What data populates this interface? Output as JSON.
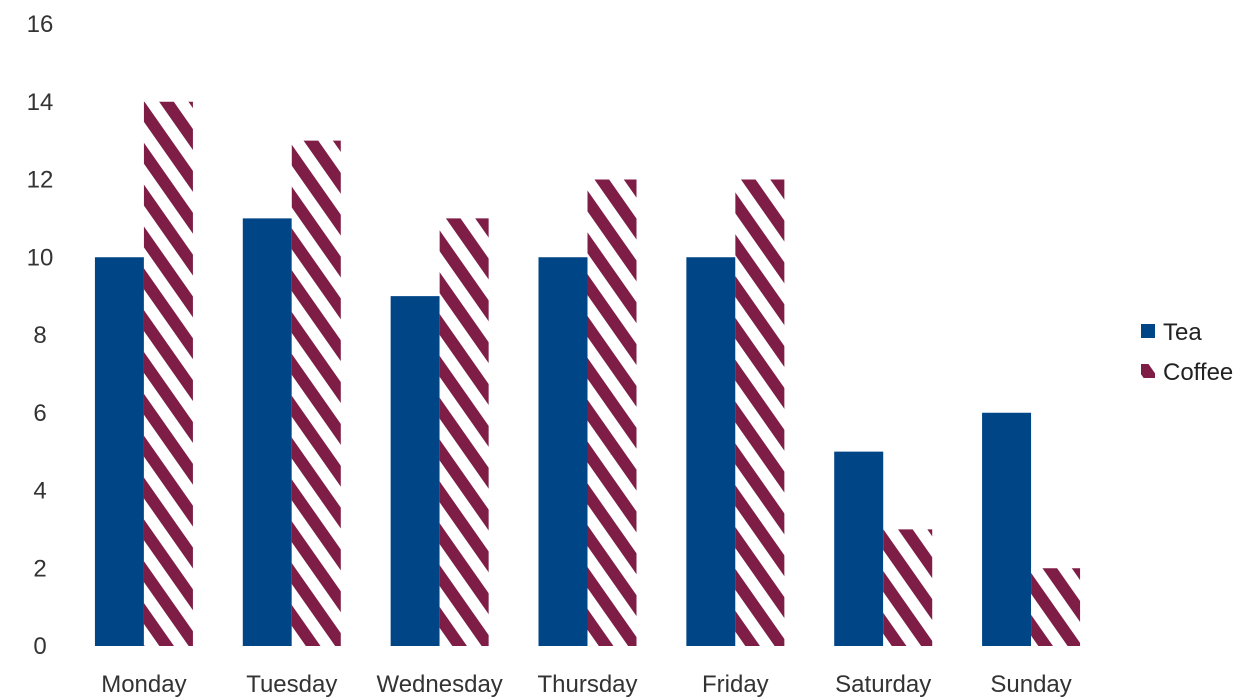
{
  "chart_data": {
    "type": "bar",
    "title": "",
    "xlabel": "",
    "ylabel": "",
    "categories": [
      "Monday",
      "Tuesday",
      "Wednesday",
      "Thursday",
      "Friday",
      "Saturday",
      "Sunday"
    ],
    "series": [
      {
        "name": "Tea",
        "values": [
          10,
          11,
          9,
          10,
          10,
          5,
          6
        ],
        "color": "#004586",
        "fill": "solid"
      },
      {
        "name": "Coffee",
        "values": [
          14,
          13,
          11,
          12,
          12,
          3,
          2
        ],
        "color": "#7e1e46",
        "fill": "diagonal-stripes"
      }
    ],
    "ylim": [
      0,
      16
    ],
    "yticks": [
      0,
      2,
      4,
      6,
      8,
      10,
      12,
      14,
      16
    ],
    "grid": false,
    "legend_position": "right"
  }
}
